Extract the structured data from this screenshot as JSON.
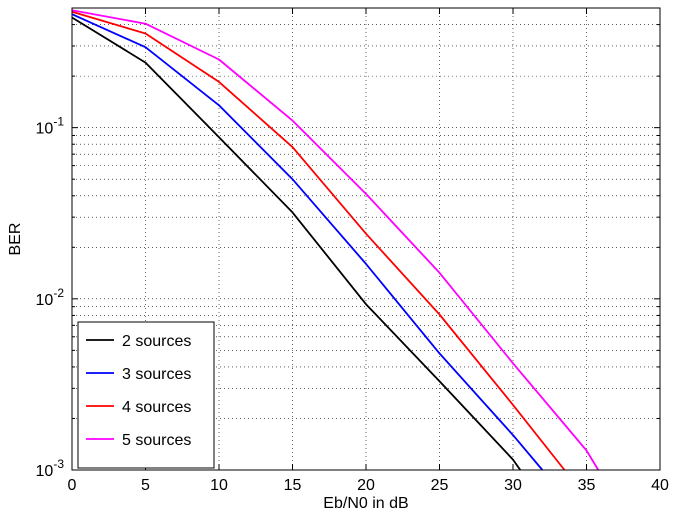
{
  "chart_data": {
    "type": "line",
    "xlabel": "Eb/N0 in dB",
    "ylabel": "BER",
    "xlim": [
      0,
      40
    ],
    "ylim": [
      0.001,
      0.5
    ],
    "yscale": "log",
    "grid": true,
    "legend_position": "bottom-left",
    "x_ticks": [
      "0",
      "5",
      "10",
      "15",
      "20",
      "25",
      "30",
      "35",
      "40"
    ],
    "y_ticks": [
      {
        "base": "10",
        "exp": "-1",
        "value": 0.1
      },
      {
        "base": "10",
        "exp": "-2",
        "value": 0.01
      },
      {
        "base": "10",
        "exp": "-3",
        "value": 0.001
      }
    ],
    "series": [
      {
        "name": "2 sources",
        "color": "#000000",
        "x": [
          0,
          5,
          10,
          15,
          20,
          25,
          30,
          30.5
        ],
        "y": [
          0.44,
          0.24,
          0.088,
          0.032,
          0.0093,
          0.0033,
          0.00115,
          0.001
        ]
      },
      {
        "name": "3 sources",
        "color": "#0000ff",
        "x": [
          0,
          5,
          10,
          15,
          20,
          25,
          30,
          32
        ],
        "y": [
          0.46,
          0.295,
          0.135,
          0.05,
          0.016,
          0.0048,
          0.0016,
          0.001
        ]
      },
      {
        "name": "4 sources",
        "color": "#ff0000",
        "x": [
          0,
          5,
          10,
          15,
          20,
          25,
          30,
          33.5
        ],
        "y": [
          0.475,
          0.355,
          0.185,
          0.077,
          0.024,
          0.0081,
          0.0024,
          0.001
        ]
      },
      {
        "name": "5 sources",
        "color": "#ff00ff",
        "x": [
          0,
          5,
          10,
          15,
          20,
          25,
          30,
          35,
          35.8
        ],
        "y": [
          0.485,
          0.405,
          0.25,
          0.11,
          0.041,
          0.0142,
          0.0042,
          0.0013,
          0.001
        ]
      }
    ]
  }
}
